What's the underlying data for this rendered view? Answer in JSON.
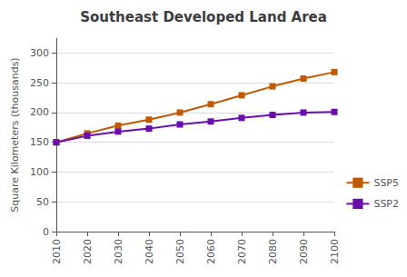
{
  "chart_data": {
    "type": "line",
    "title": "Southeast Developed Land Area",
    "ylabel": "Square Kilometers (thousands)",
    "x": [
      2010,
      2020,
      2030,
      2040,
      2050,
      2060,
      2070,
      2080,
      2090,
      2100
    ],
    "xlim": [
      2010,
      2100
    ],
    "xticks": [
      2010,
      2020,
      2030,
      2040,
      2050,
      2060,
      2070,
      2080,
      2090,
      2100
    ],
    "series": [
      {
        "name": "SSP5",
        "color": "#C05A00",
        "values": [
          150,
          165,
          178,
          188,
          200,
          214,
          229,
          244,
          257,
          268
        ]
      },
      {
        "name": "SSP2",
        "color": "#6A0DAD",
        "values": [
          150,
          161,
          168,
          173,
          180,
          185,
          191,
          196,
          200,
          201
        ]
      }
    ],
    "ylim": [
      0,
      325
    ],
    "yticks": [
      0,
      50,
      100,
      150,
      200,
      250,
      300
    ],
    "grid": true,
    "legend": "lower right",
    "marker": "square"
  }
}
